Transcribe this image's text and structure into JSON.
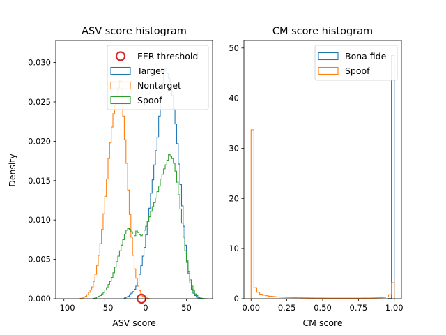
{
  "chart_data": [
    {
      "type": "histogram",
      "title": "ASV score histogram",
      "xlabel": "ASV score",
      "ylabel": "Density",
      "xlim": [
        -110,
        82
      ],
      "ylim": [
        0,
        0.0328
      ],
      "xticks": [
        -100,
        -50,
        0,
        50
      ],
      "yticks": [
        0.0,
        0.005,
        0.01,
        0.015,
        0.02,
        0.025,
        0.03
      ],
      "ytick_labels": [
        "0.000",
        "0.005",
        "0.010",
        "0.015",
        "0.020",
        "0.025",
        "0.030"
      ],
      "legend_location": "upper right",
      "eer_threshold": {
        "label": "EER threshold",
        "x": -5,
        "y": 0,
        "color": "#d62728"
      },
      "series": [
        {
          "name": "Target",
          "color": "#1f77b4",
          "bins": [
            -28,
            -26,
            -24,
            -22,
            -20,
            -18,
            -16,
            -14,
            -12,
            -10,
            -8,
            -6,
            -4,
            -2,
            0,
            2,
            4,
            6,
            8,
            10,
            12,
            14,
            16,
            18,
            20,
            22,
            24,
            26,
            28,
            30,
            32,
            34,
            36,
            38,
            40,
            42,
            44,
            46,
            48,
            50,
            52,
            54,
            56,
            58,
            60,
            62,
            64,
            66,
            68,
            70
          ],
          "values": [
            0,
            0.0001,
            0.0002,
            0.0003,
            0.0005,
            0.0007,
            0.0009,
            0.0012,
            0.0016,
            0.002,
            0.0031,
            0.0042,
            0.0054,
            0.0065,
            0.0081,
            0.0098,
            0.0115,
            0.0134,
            0.0151,
            0.017,
            0.0188,
            0.0205,
            0.0232,
            0.0252,
            0.0273,
            0.0289,
            0.0292,
            0.0286,
            0.028,
            0.0271,
            0.0258,
            0.0241,
            0.0222,
            0.0197,
            0.0171,
            0.0145,
            0.0118,
            0.0092,
            0.0068,
            0.0048,
            0.0032,
            0.002,
            0.0012,
            0.0007,
            0.0004,
            0.0002,
            0.0001,
            5e-05,
            0
          ]
        },
        {
          "name": "Nontarget",
          "color": "#ff7f0e",
          "bins": [
            -80,
            -78,
            -76,
            -74,
            -72,
            -70,
            -68,
            -66,
            -64,
            -62,
            -60,
            -58,
            -56,
            -54,
            -52,
            -50,
            -48,
            -46,
            -44,
            -42,
            -40,
            -38,
            -36,
            -34,
            -32,
            -30,
            -28,
            -26,
            -24,
            -22,
            -20,
            -18,
            -16,
            -14,
            -12,
            -10,
            -8,
            -6,
            -4,
            -2,
            0,
            2,
            4,
            6
          ],
          "values": [
            5e-05,
            0.0001,
            0.0002,
            0.0003,
            0.0005,
            0.0008,
            0.0011,
            0.0015,
            0.0022,
            0.0031,
            0.0042,
            0.0055,
            0.007,
            0.0088,
            0.0108,
            0.013,
            0.0152,
            0.0178,
            0.0198,
            0.0218,
            0.0235,
            0.0245,
            0.026,
            0.0268,
            0.0277,
            0.026,
            0.0232,
            0.0202,
            0.0172,
            0.0138,
            0.0107,
            0.0078,
            0.0055,
            0.0038,
            0.0026,
            0.0016,
            0.001,
            0.0006,
            0.0003,
            0.0002,
            0.0001,
            5e-05,
            0
          ]
        },
        {
          "name": "Spoof",
          "color": "#2ca02c",
          "bins": [
            -64,
            -62,
            -60,
            -58,
            -56,
            -54,
            -52,
            -50,
            -48,
            -46,
            -44,
            -42,
            -40,
            -38,
            -36,
            -34,
            -32,
            -30,
            -28,
            -26,
            -24,
            -22,
            -20,
            -18,
            -16,
            -14,
            -12,
            -10,
            -8,
            -6,
            -4,
            -2,
            0,
            2,
            4,
            6,
            8,
            10,
            12,
            14,
            16,
            18,
            20,
            22,
            24,
            26,
            28,
            30,
            32,
            34,
            36,
            38,
            40,
            42,
            44,
            46,
            48,
            50,
            52,
            54,
            56,
            58,
            60,
            62,
            64,
            66,
            68,
            70,
            72,
            74,
            76
          ],
          "values": [
            5e-05,
            0.0001,
            0.0002,
            0.0003,
            0.0004,
            0.0006,
            0.0008,
            0.0011,
            0.0014,
            0.0018,
            0.0022,
            0.0027,
            0.0033,
            0.004,
            0.0047,
            0.0054,
            0.0061,
            0.0068,
            0.0075,
            0.0082,
            0.0087,
            0.0089,
            0.0088,
            0.0085,
            0.0082,
            0.008,
            0.0086,
            0.0084,
            0.0081,
            0.008,
            0.0082,
            0.0087,
            0.0092,
            0.0098,
            0.0104,
            0.0111,
            0.0117,
            0.0122,
            0.0128,
            0.0136,
            0.0143,
            0.0152,
            0.0158,
            0.0165,
            0.017,
            0.0176,
            0.0183,
            0.0181,
            0.0178,
            0.0172,
            0.0162,
            0.0148,
            0.0132,
            0.0114,
            0.0096,
            0.0078,
            0.0061,
            0.0046,
            0.0034,
            0.0024,
            0.0016,
            0.001,
            0.0006,
            0.0004,
            0.0002,
            0.0001,
            5e-05,
            2e-05,
            1e-05,
            0
          ]
        }
      ]
    },
    {
      "type": "histogram",
      "title": "CM score histogram",
      "xlabel": "CM score",
      "ylabel": "",
      "xlim": [
        -0.05,
        1.05
      ],
      "ylim": [
        0,
        51.5
      ],
      "xticks": [
        0.0,
        0.25,
        0.5,
        0.75,
        1.0
      ],
      "xtick_labels": [
        "0.00",
        "0.25",
        "0.50",
        "0.75",
        "1.00"
      ],
      "yticks": [
        0,
        10,
        20,
        30,
        40,
        50
      ],
      "ytick_labels": [
        "0",
        "10",
        "20",
        "30",
        "40",
        "50"
      ],
      "legend_location": "upper right",
      "series": [
        {
          "name": "Bona fide",
          "color": "#1f77b4",
          "bins": [
            0.96,
            0.98,
            1.0
          ],
          "values": [
            0.05,
            48.5
          ]
        },
        {
          "name": "Spoof",
          "color": "#ff7f0e",
          "bins": [
            0.0,
            0.02,
            0.04,
            0.06,
            0.08,
            0.1,
            0.12,
            0.14,
            0.16,
            0.18,
            0.2,
            0.22,
            0.24,
            0.26,
            0.28,
            0.3,
            0.32,
            0.34,
            0.36,
            0.38,
            0.4,
            0.42,
            0.44,
            0.46,
            0.48,
            0.5,
            0.52,
            0.54,
            0.56,
            0.58,
            0.6,
            0.62,
            0.64,
            0.66,
            0.68,
            0.7,
            0.72,
            0.74,
            0.76,
            0.78,
            0.8,
            0.82,
            0.84,
            0.86,
            0.88,
            0.9,
            0.92,
            0.94,
            0.96,
            0.98,
            1.0
          ],
          "values": [
            33.7,
            2.2,
            1.3,
            0.9,
            0.7,
            0.6,
            0.5,
            0.45,
            0.4,
            0.35,
            0.3,
            0.28,
            0.25,
            0.23,
            0.21,
            0.2,
            0.19,
            0.18,
            0.17,
            0.16,
            0.15,
            0.15,
            0.14,
            0.14,
            0.13,
            0.13,
            0.12,
            0.12,
            0.12,
            0.11,
            0.11,
            0.11,
            0.11,
            0.11,
            0.11,
            0.11,
            0.12,
            0.12,
            0.12,
            0.13,
            0.13,
            0.14,
            0.15,
            0.16,
            0.18,
            0.2,
            0.25,
            0.35,
            0.8,
            3.2
          ]
        }
      ]
    }
  ]
}
